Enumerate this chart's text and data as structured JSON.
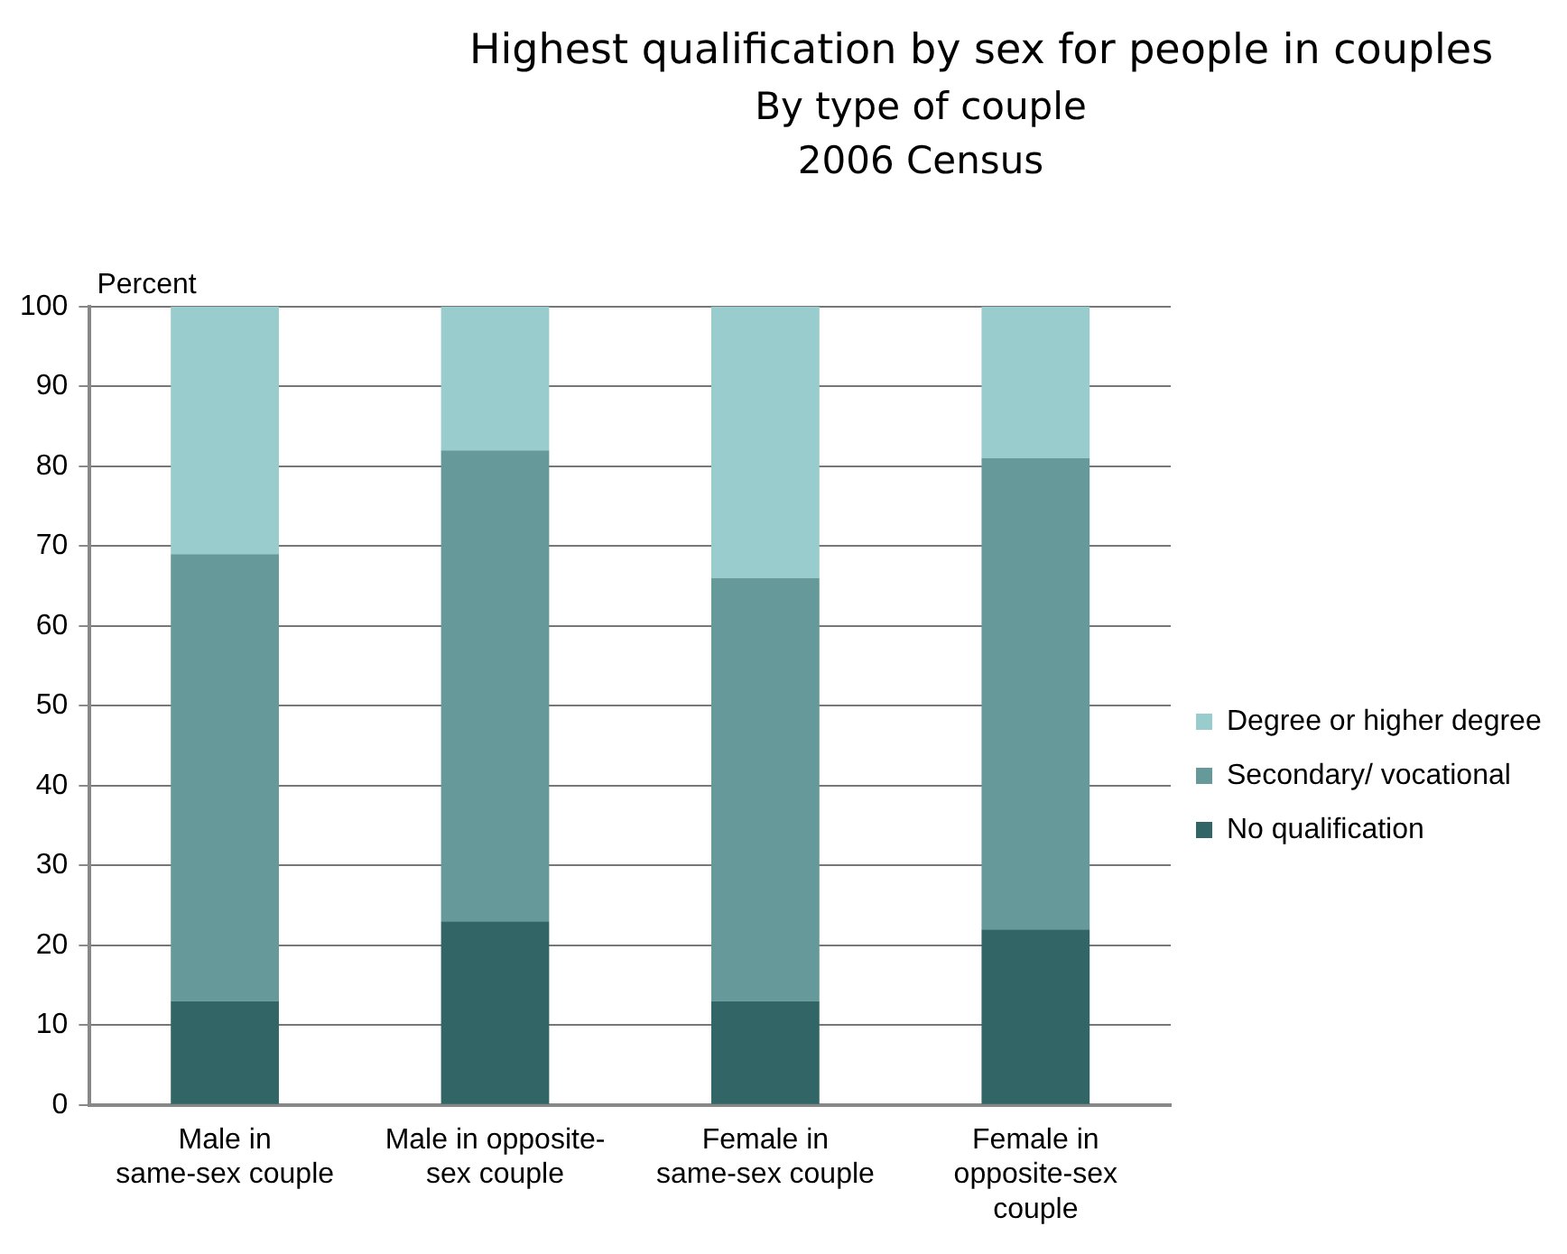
{
  "chart_data": {
    "type": "bar",
    "title": "Highest qualification by sex for people in couples",
    "subtitle": "By type of couple",
    "annotations": [
      "2006 Census"
    ],
    "ylabel": "Percent",
    "categories": [
      "Male in same-sex couple",
      "Male in opposite-sex couple",
      "Female in same-sex couple",
      "Female in opposite-sex couple"
    ],
    "series": [
      {
        "name": "No qualification",
        "color": "#326666",
        "values": [
          13,
          23,
          13,
          22
        ]
      },
      {
        "name": "Secondary/ vocational",
        "color": "#669999",
        "values": [
          56,
          59,
          53,
          59
        ]
      },
      {
        "name": "Degree or higher degree",
        "color": "#99cccc",
        "values": [
          31,
          18,
          34,
          19
        ]
      }
    ],
    "stacked": true,
    "ylim": [
      0,
      100
    ],
    "yticks": [
      0,
      10,
      20,
      30,
      40,
      50,
      60,
      70,
      80,
      90,
      100
    ],
    "grid": "y",
    "legend": "right"
  }
}
